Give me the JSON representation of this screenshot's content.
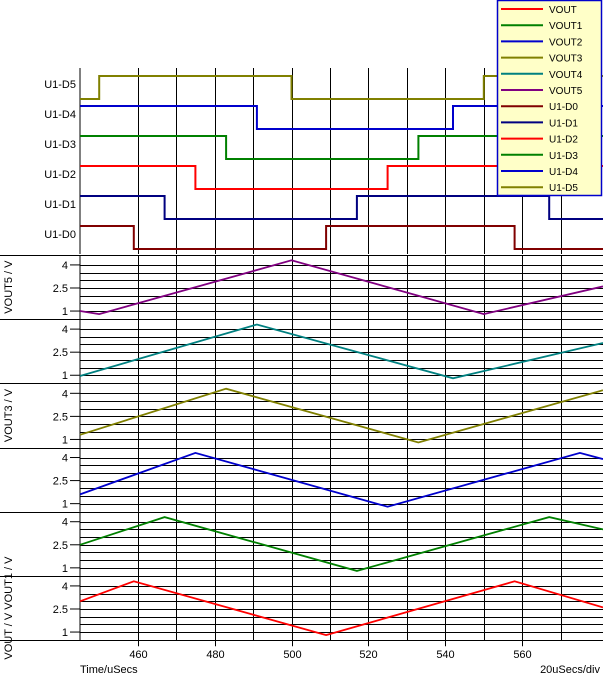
{
  "chart_data": {
    "type": "line",
    "time_label": "Time/uSecs",
    "div_label": "20uSecs/div",
    "xlim": [
      445,
      581
    ],
    "x_ticks": [
      460,
      480,
      500,
      520,
      540,
      560
    ],
    "digital_traces": [
      {
        "name": "U1-D5",
        "color": "#808000",
        "start_level": 0,
        "transitions": [
          450,
          500,
          550
        ]
      },
      {
        "name": "U1-D4",
        "color": "#0000cc",
        "start_level": 1,
        "transitions": [
          491,
          542
        ]
      },
      {
        "name": "U1-D3",
        "color": "#008000",
        "start_level": 1,
        "transitions": [
          483,
          533
        ]
      },
      {
        "name": "U1-D2",
        "color": "#ff0000",
        "start_level": 1,
        "transitions": [
          475,
          525
        ]
      },
      {
        "name": "U1-D1",
        "color": "#000080",
        "start_level": 1,
        "transitions": [
          467,
          517,
          567
        ]
      },
      {
        "name": "U1-D0",
        "color": "#800000",
        "start_level": 1,
        "transitions": [
          459,
          509,
          558
        ]
      }
    ],
    "analog_panels": [
      {
        "ylabel": "VOUT5 / V",
        "yticks": [
          "4",
          "2.5",
          "1"
        ],
        "series": [
          {
            "name": "VOUT5",
            "color": "#800080",
            "points": [
              [
                445,
                1.0
              ],
              [
                450,
                0.8
              ],
              [
                500,
                4.3
              ],
              [
                550,
                0.8
              ],
              [
                581,
                2.6
              ]
            ]
          }
        ]
      },
      {
        "ylabel": "",
        "yticks": [
          "4",
          "2.5",
          "1"
        ],
        "series": [
          {
            "name": "VOUT4",
            "color": "#008080",
            "points": [
              [
                445,
                0.95
              ],
              [
                491,
                4.3
              ],
              [
                542,
                0.8
              ],
              [
                581,
                3.1
              ]
            ]
          }
        ]
      },
      {
        "ylabel": "VOUT3 / V",
        "yticks": [
          "4",
          "2.5",
          "1"
        ],
        "series": [
          {
            "name": "VOUT3",
            "color": "#808000",
            "points": [
              [
                445,
                1.3
              ],
              [
                483,
                4.3
              ],
              [
                533,
                0.8
              ],
              [
                581,
                4.2
              ]
            ]
          }
        ]
      },
      {
        "ylabel": "",
        "yticks": [
          "4",
          "2.5",
          "1"
        ],
        "series": [
          {
            "name": "VOUT2",
            "color": "#0000cc",
            "points": [
              [
                445,
                1.6
              ],
              [
                475,
                4.3
              ],
              [
                525,
                0.8
              ],
              [
                575,
                4.3
              ],
              [
                581,
                3.9
              ]
            ]
          }
        ]
      },
      {
        "ylabel": "",
        "yticks": [
          "4",
          "2.5",
          "1"
        ],
        "series": [
          {
            "name": "VOUT1",
            "color": "#008000",
            "points": [
              [
                445,
                2.5
              ],
              [
                467,
                4.3
              ],
              [
                517,
                0.8
              ],
              [
                567,
                4.3
              ],
              [
                581,
                3.5
              ]
            ]
          }
        ]
      },
      {
        "ylabel": "VOUT / V VOUT1 / V",
        "yticks": [
          "4",
          "2.5",
          "1"
        ],
        "series": [
          {
            "name": "VOUT",
            "color": "#ff0000",
            "points": [
              [
                445,
                3.0
              ],
              [
                459,
                4.3
              ],
              [
                509,
                0.8
              ],
              [
                558,
                4.3
              ],
              [
                581,
                2.6
              ]
            ]
          }
        ]
      }
    ],
    "legend": {
      "placement": "top-right",
      "entries": [
        {
          "name": "VOUT",
          "color": "#ff0000"
        },
        {
          "name": "VOUT1",
          "color": "#008000"
        },
        {
          "name": "VOUT2",
          "color": "#0000cc"
        },
        {
          "name": "VOUT3",
          "color": "#808000"
        },
        {
          "name": "VOUT4",
          "color": "#008080"
        },
        {
          "name": "VOUT5",
          "color": "#800080"
        },
        {
          "name": "U1-D0",
          "color": "#800000"
        },
        {
          "name": "U1-D1",
          "color": "#000080"
        },
        {
          "name": "U1-D2",
          "color": "#ff0000"
        },
        {
          "name": "U1-D3",
          "color": "#008000"
        },
        {
          "name": "U1-D4",
          "color": "#0000cc"
        },
        {
          "name": "U1-D5",
          "color": "#808000"
        }
      ]
    }
  }
}
